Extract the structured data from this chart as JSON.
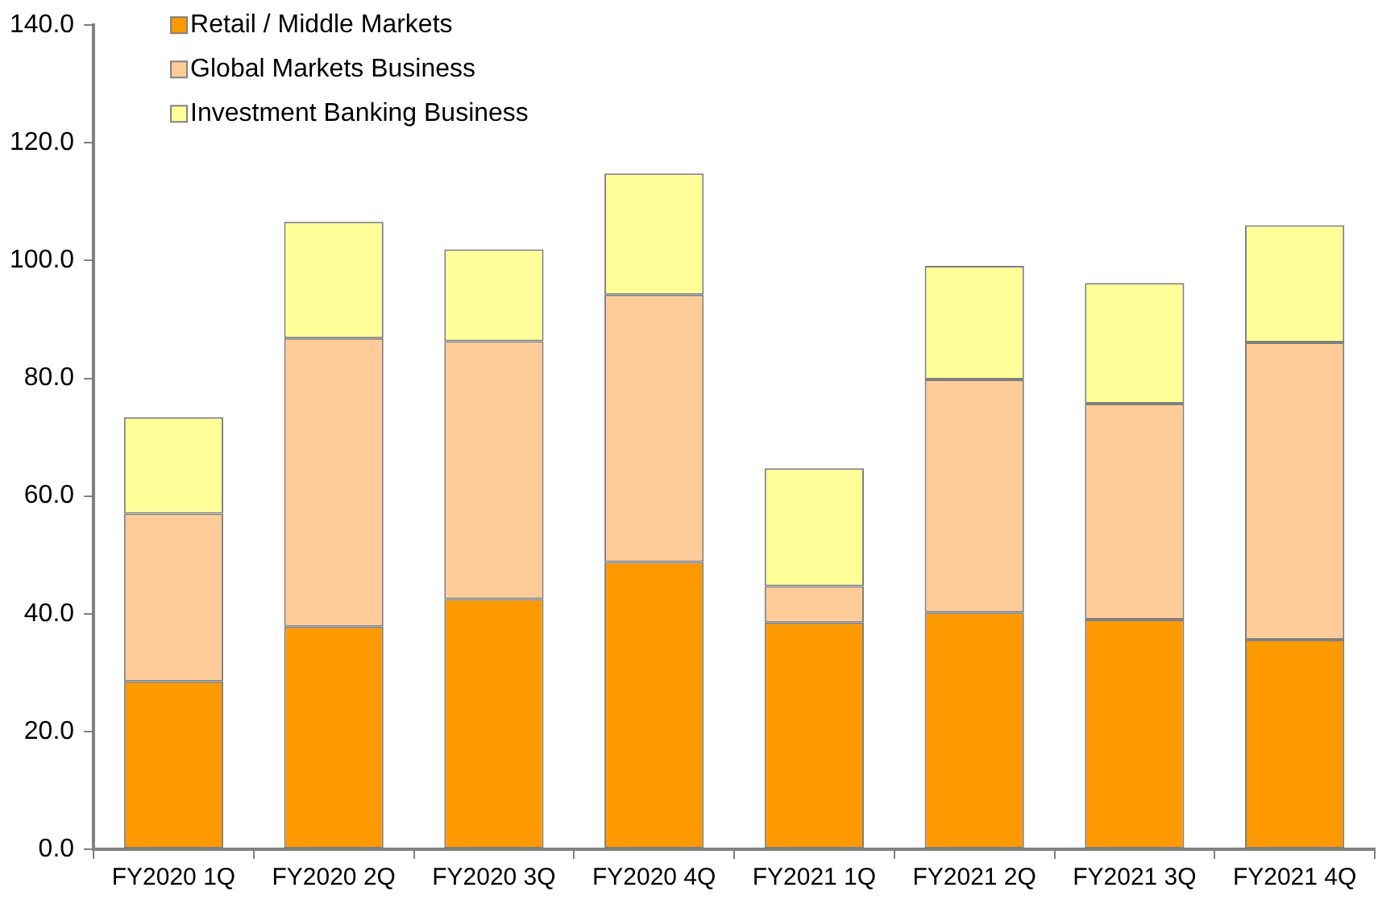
{
  "chart_data": {
    "type": "bar",
    "stacked": true,
    "categories": [
      "FY2020 1Q",
      "FY2020 2Q",
      "FY2020 3Q",
      "FY2020 4Q",
      "FY2021 1Q",
      "FY2021 2Q",
      "FY2021 3Q",
      "FY2021 4Q"
    ],
    "series": [
      {
        "name": "Retail / Middle Markets",
        "color": "#ff9900",
        "values": [
          28.5,
          37.8,
          42.5,
          48.8,
          38.5,
          40.2,
          39.0,
          35.6
        ]
      },
      {
        "name": "Global Markets Business",
        "color": "#ffcc99",
        "values": [
          28.5,
          49.0,
          43.8,
          45.4,
          6.2,
          39.6,
          36.7,
          50.5
        ]
      },
      {
        "name": "Investment Banking Business",
        "color": "#ffff99",
        "values": [
          16.4,
          19.8,
          15.6,
          20.6,
          20.0,
          19.3,
          20.5,
          19.9
        ]
      }
    ],
    "ylim": [
      0,
      140
    ],
    "yticks": [
      {
        "value": 0,
        "label": "0.0"
      },
      {
        "value": 20,
        "label": "20.0"
      },
      {
        "value": 40,
        "label": "40.0"
      },
      {
        "value": 60,
        "label": "60.0"
      },
      {
        "value": 80,
        "label": "80.0"
      },
      {
        "value": 100,
        "label": "100.0"
      },
      {
        "value": 120,
        "label": "120.0"
      },
      {
        "value": 140,
        "label": "140.0"
      }
    ],
    "grid": false,
    "legend": "top left"
  }
}
